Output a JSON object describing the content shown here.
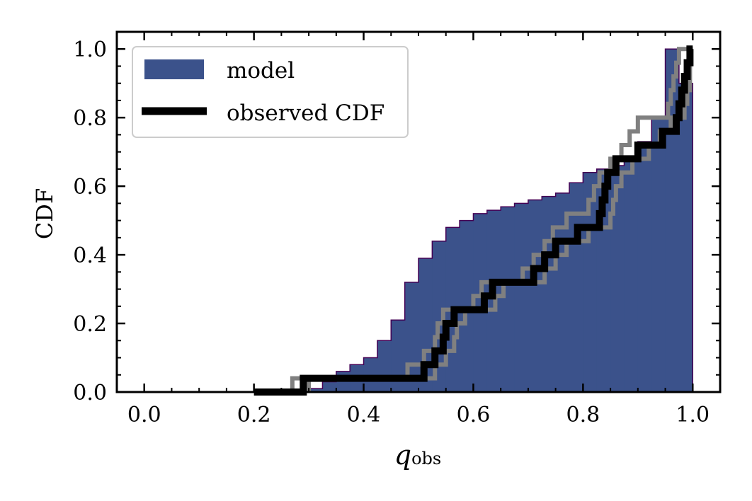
{
  "chart_data": {
    "type": "step",
    "ylabel": "CDF",
    "xlabel": {
      "main": "q",
      "sub": "obs"
    },
    "xlim": [
      -0.05,
      1.05
    ],
    "ylim": [
      0.0,
      1.05
    ],
    "xticks": [
      0.0,
      0.2,
      0.4,
      0.6,
      0.8,
      1.0
    ],
    "xtick_labels": [
      "0.0",
      "0.2",
      "0.4",
      "0.6",
      "0.8",
      "1.0"
    ],
    "yticks": [
      0.0,
      0.2,
      0.4,
      0.6,
      0.8,
      1.0
    ],
    "ytick_labels": [
      "0.0",
      "0.2",
      "0.4",
      "0.6",
      "0.8",
      "1.0"
    ],
    "legend": {
      "position": "upper-left",
      "entries": [
        {
          "label": "model",
          "kind": "patch",
          "color": "#3b528b"
        },
        {
          "label": "observed CDF",
          "kind": "line",
          "color": "#000000"
        }
      ]
    },
    "model_hist": {
      "label": "model",
      "color": "#3b528b",
      "edge_color": "#440154",
      "bin_edges": [
        0.3,
        0.325,
        0.35,
        0.375,
        0.4,
        0.425,
        0.45,
        0.475,
        0.5,
        0.525,
        0.55,
        0.575,
        0.6,
        0.625,
        0.65,
        0.675,
        0.7,
        0.725,
        0.75,
        0.775,
        0.8,
        0.825,
        0.85,
        0.875,
        0.9,
        0.925,
        0.95,
        0.975,
        1.0
      ],
      "cdf_values": [
        0.01,
        0.03,
        0.06,
        0.08,
        0.1,
        0.15,
        0.21,
        0.32,
        0.39,
        0.44,
        0.48,
        0.5,
        0.52,
        0.53,
        0.54,
        0.55,
        0.56,
        0.57,
        0.58,
        0.61,
        0.64,
        0.65,
        0.66,
        0.68,
        0.73,
        0.8,
        1.0,
        0.9
      ]
    },
    "observed_cdf": {
      "label": "observed CDF",
      "color": "#000000",
      "steps": [
        [
          0.2,
          0.0
        ],
        [
          0.29,
          0.0
        ],
        [
          0.29,
          0.04
        ],
        [
          0.51,
          0.04
        ],
        [
          0.51,
          0.08
        ],
        [
          0.53,
          0.08
        ],
        [
          0.53,
          0.12
        ],
        [
          0.545,
          0.12
        ],
        [
          0.545,
          0.16
        ],
        [
          0.55,
          0.16
        ],
        [
          0.55,
          0.2
        ],
        [
          0.565,
          0.2
        ],
        [
          0.565,
          0.24
        ],
        [
          0.62,
          0.24
        ],
        [
          0.62,
          0.28
        ],
        [
          0.635,
          0.28
        ],
        [
          0.635,
          0.32
        ],
        [
          0.71,
          0.32
        ],
        [
          0.71,
          0.36
        ],
        [
          0.73,
          0.36
        ],
        [
          0.73,
          0.4
        ],
        [
          0.75,
          0.4
        ],
        [
          0.75,
          0.44
        ],
        [
          0.79,
          0.44
        ],
        [
          0.79,
          0.48
        ],
        [
          0.83,
          0.48
        ],
        [
          0.83,
          0.52
        ],
        [
          0.835,
          0.52
        ],
        [
          0.835,
          0.56
        ],
        [
          0.84,
          0.56
        ],
        [
          0.84,
          0.6
        ],
        [
          0.845,
          0.6
        ],
        [
          0.845,
          0.64
        ],
        [
          0.86,
          0.64
        ],
        [
          0.86,
          0.68
        ],
        [
          0.9,
          0.68
        ],
        [
          0.9,
          0.72
        ],
        [
          0.945,
          0.72
        ],
        [
          0.945,
          0.76
        ],
        [
          0.97,
          0.76
        ],
        [
          0.97,
          0.8
        ],
        [
          0.975,
          0.8
        ],
        [
          0.975,
          0.84
        ],
        [
          0.98,
          0.84
        ],
        [
          0.98,
          0.88
        ],
        [
          0.985,
          0.88
        ],
        [
          0.985,
          0.92
        ],
        [
          0.99,
          0.92
        ],
        [
          0.99,
          0.96
        ],
        [
          0.995,
          0.96
        ],
        [
          0.995,
          1.0
        ],
        [
          1.0,
          1.0
        ]
      ]
    },
    "envelope_upper": {
      "color": "#808080",
      "steps": [
        [
          0.27,
          0.0
        ],
        [
          0.27,
          0.04
        ],
        [
          0.48,
          0.04
        ],
        [
          0.48,
          0.08
        ],
        [
          0.51,
          0.08
        ],
        [
          0.51,
          0.12
        ],
        [
          0.53,
          0.12
        ],
        [
          0.53,
          0.16
        ],
        [
          0.535,
          0.16
        ],
        [
          0.535,
          0.2
        ],
        [
          0.545,
          0.2
        ],
        [
          0.545,
          0.24
        ],
        [
          0.6,
          0.24
        ],
        [
          0.6,
          0.28
        ],
        [
          0.615,
          0.28
        ],
        [
          0.615,
          0.32
        ],
        [
          0.69,
          0.32
        ],
        [
          0.69,
          0.36
        ],
        [
          0.71,
          0.36
        ],
        [
          0.71,
          0.4
        ],
        [
          0.73,
          0.4
        ],
        [
          0.73,
          0.44
        ],
        [
          0.745,
          0.44
        ],
        [
          0.745,
          0.48
        ],
        [
          0.77,
          0.48
        ],
        [
          0.77,
          0.52
        ],
        [
          0.81,
          0.52
        ],
        [
          0.81,
          0.56
        ],
        [
          0.82,
          0.56
        ],
        [
          0.82,
          0.6
        ],
        [
          0.83,
          0.6
        ],
        [
          0.83,
          0.64
        ],
        [
          0.85,
          0.64
        ],
        [
          0.85,
          0.68
        ],
        [
          0.87,
          0.68
        ],
        [
          0.87,
          0.72
        ],
        [
          0.885,
          0.72
        ],
        [
          0.885,
          0.76
        ],
        [
          0.9,
          0.76
        ],
        [
          0.9,
          0.8
        ],
        [
          0.955,
          0.8
        ],
        [
          0.955,
          0.84
        ],
        [
          0.96,
          0.84
        ],
        [
          0.96,
          0.88
        ],
        [
          0.965,
          0.88
        ],
        [
          0.965,
          0.92
        ],
        [
          0.97,
          0.92
        ],
        [
          0.97,
          0.96
        ],
        [
          0.975,
          0.96
        ],
        [
          0.975,
          1.0
        ],
        [
          1.0,
          1.0
        ]
      ]
    },
    "envelope_lower": {
      "color": "#808080",
      "steps": [
        [
          0.3,
          0.0
        ],
        [
          0.3,
          0.04
        ],
        [
          0.53,
          0.04
        ],
        [
          0.53,
          0.08
        ],
        [
          0.55,
          0.08
        ],
        [
          0.55,
          0.12
        ],
        [
          0.565,
          0.12
        ],
        [
          0.565,
          0.16
        ],
        [
          0.57,
          0.16
        ],
        [
          0.57,
          0.2
        ],
        [
          0.585,
          0.2
        ],
        [
          0.585,
          0.24
        ],
        [
          0.64,
          0.24
        ],
        [
          0.64,
          0.28
        ],
        [
          0.655,
          0.28
        ],
        [
          0.655,
          0.32
        ],
        [
          0.73,
          0.32
        ],
        [
          0.73,
          0.36
        ],
        [
          0.75,
          0.36
        ],
        [
          0.75,
          0.4
        ],
        [
          0.77,
          0.4
        ],
        [
          0.77,
          0.44
        ],
        [
          0.81,
          0.44
        ],
        [
          0.81,
          0.48
        ],
        [
          0.85,
          0.48
        ],
        [
          0.85,
          0.52
        ],
        [
          0.855,
          0.52
        ],
        [
          0.855,
          0.56
        ],
        [
          0.86,
          0.56
        ],
        [
          0.86,
          0.6
        ],
        [
          0.87,
          0.6
        ],
        [
          0.87,
          0.64
        ],
        [
          0.89,
          0.64
        ],
        [
          0.89,
          0.68
        ],
        [
          0.92,
          0.68
        ],
        [
          0.92,
          0.72
        ],
        [
          0.94,
          0.72
        ],
        [
          0.94,
          0.76
        ],
        [
          0.96,
          0.76
        ],
        [
          0.96,
          0.8
        ],
        [
          0.985,
          0.8
        ],
        [
          0.985,
          0.84
        ],
        [
          0.99,
          0.84
        ],
        [
          0.99,
          0.88
        ],
        [
          0.995,
          0.88
        ],
        [
          0.995,
          1.0
        ],
        [
          1.0,
          1.0
        ]
      ]
    }
  }
}
